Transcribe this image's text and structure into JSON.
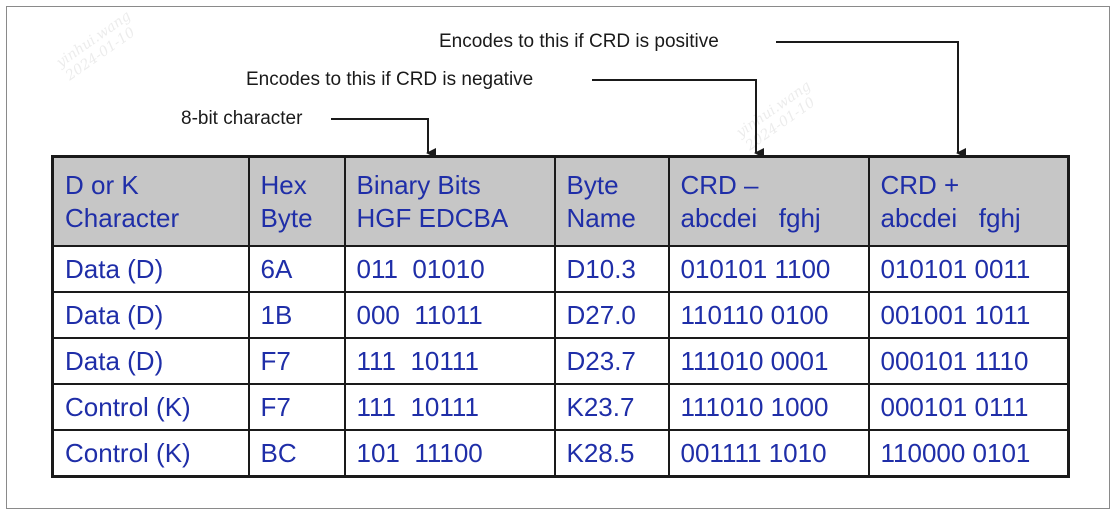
{
  "callouts": {
    "positive": "Encodes to this if CRD is positive",
    "negative": "Encodes to this if CRD is negative",
    "char": "8-bit character"
  },
  "colors": {
    "text": "#1f2ea8",
    "header_bg": "#c6c6c6",
    "border": "#1a1a1a"
  },
  "table": {
    "headers": [
      {
        "line1": "D or K",
        "line2": "Character"
      },
      {
        "line1": "Hex",
        "line2": "Byte"
      },
      {
        "line1": "Binary Bits",
        "line2": "HGF EDCBA"
      },
      {
        "line1": "Byte",
        "line2": "Name"
      },
      {
        "line1": "CRD –",
        "line2": "abcdei   fghj"
      },
      {
        "line1": "CRD +",
        "line2": "abcdei   fghj"
      }
    ],
    "rows": [
      [
        "Data (D)",
        "6A",
        "011  01010",
        "D10.3",
        "010101 1100",
        "010101 0011"
      ],
      [
        "Data (D)",
        "1B",
        "000  11011",
        "D27.0",
        "110110 0100",
        "001001 1011"
      ],
      [
        "Data (D)",
        "F7",
        "111  10111",
        "D23.7",
        "111010 0001",
        "000101 1110"
      ],
      [
        "Control (K)",
        "F7",
        "111  10111",
        "K23.7",
        "111010 1000",
        "000101 0111"
      ],
      [
        "Control (K)",
        "BC",
        "101  11100",
        "K28.5",
        "001111 1010",
        "110000 0101"
      ]
    ]
  },
  "watermark": {
    "name": "yinhui.wang",
    "date": "2024-01-10"
  }
}
